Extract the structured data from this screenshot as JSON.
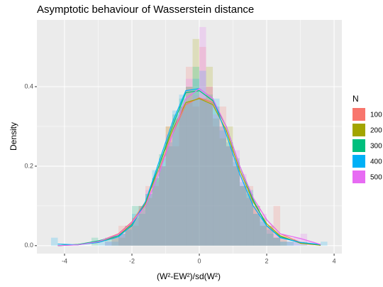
{
  "chart_data": {
    "type": "histogram",
    "title": "Asymptotic behaviour of Wasserstein distance",
    "x_label": "(W²-EW²)/sd(W²)",
    "y_label": "Density",
    "legend_title": "N",
    "xlim": [
      -4.82,
      4.23
    ],
    "ylim": [
      -0.02,
      0.568
    ],
    "xticks": [
      -4,
      -2,
      0,
      2,
      4
    ],
    "yticks": [
      {
        "value": 0,
        "label": "0.0"
      },
      0.2,
      0.4
    ],
    "grid": true,
    "bins": [
      -4.4,
      -4.2,
      -4.0,
      -3.8,
      -3.6,
      -3.4,
      -3.2,
      -3.0,
      -2.8,
      -2.6,
      -2.4,
      -2.2,
      -2.0,
      -1.8,
      -1.6,
      -1.4,
      -1.2,
      -1.0,
      -0.8,
      -0.6,
      -0.4,
      -0.2,
      0.0,
      0.2,
      0.4,
      0.6,
      0.8,
      1.0,
      1.2,
      1.4,
      1.6,
      1.8,
      2.0,
      2.2,
      2.4,
      2.6,
      2.8,
      3.0,
      3.2,
      3.4,
      3.6,
      3.8
    ],
    "density_x": [
      -4.2,
      -3.6,
      -3.0,
      -2.4,
      -2.0,
      -1.6,
      -1.2,
      -0.8,
      -0.4,
      0.0,
      0.4,
      0.8,
      1.2,
      1.6,
      2.0,
      2.4,
      3.0,
      3.6
    ],
    "series": [
      {
        "name": "100",
        "color": "#F8766D",
        "values": [
          0,
          0,
          0,
          0,
          0,
          0,
          0,
          0,
          0,
          0,
          0.05,
          0.05,
          0.05,
          0.1,
          0.15,
          0.15,
          0.2,
          0.3,
          0.25,
          0.35,
          0.45,
          0.35,
          0.5,
          0.4,
          0.3,
          0.35,
          0.25,
          0.2,
          0.15,
          0.15,
          0.1,
          0.05,
          0.05,
          0.1,
          0,
          0,
          0,
          0,
          0,
          0,
          0
        ],
        "density": [
          0.0,
          0.002,
          0.01,
          0.03,
          0.06,
          0.11,
          0.19,
          0.28,
          0.355,
          0.372,
          0.36,
          0.3,
          0.2,
          0.12,
          0.065,
          0.03,
          0.008,
          0.001
        ]
      },
      {
        "name": "200",
        "color": "#A3A500",
        "values": [
          0,
          0,
          0,
          0,
          0,
          0,
          0,
          0,
          0,
          0.02,
          0.02,
          0.05,
          0.07,
          0.1,
          0.12,
          0.17,
          0.2,
          0.3,
          0.32,
          0.35,
          0.4,
          0.52,
          0.37,
          0.45,
          0.32,
          0.27,
          0.3,
          0.2,
          0.15,
          0.12,
          0.1,
          0.05,
          0.05,
          0.02,
          0.02,
          0,
          0,
          0,
          0,
          0,
          0
        ],
        "density": [
          0.0,
          0.003,
          0.008,
          0.025,
          0.055,
          0.105,
          0.2,
          0.29,
          0.36,
          0.37,
          0.355,
          0.29,
          0.19,
          0.11,
          0.055,
          0.025,
          0.006,
          0.001
        ]
      },
      {
        "name": "300",
        "color": "#00BF7D",
        "values": [
          0,
          0,
          0,
          0,
          0,
          0,
          0.02,
          0,
          0.02,
          0.02,
          0.03,
          0.05,
          0.1,
          0.08,
          0.13,
          0.17,
          0.23,
          0.25,
          0.33,
          0.37,
          0.4,
          0.45,
          0.37,
          0.38,
          0.35,
          0.3,
          0.25,
          0.22,
          0.15,
          0.13,
          0.08,
          0.07,
          0.03,
          0.02,
          0.01,
          0.01,
          0,
          0.01,
          0,
          0,
          0
        ],
        "density": [
          0.0,
          0.003,
          0.012,
          0.025,
          0.05,
          0.11,
          0.2,
          0.3,
          0.385,
          0.39,
          0.365,
          0.3,
          0.2,
          0.115,
          0.05,
          0.022,
          0.008,
          0.002
        ]
      },
      {
        "name": "400",
        "color": "#00B0F6",
        "values": [
          0.02,
          0,
          0,
          0,
          0,
          0,
          0,
          0.01,
          0.01,
          0.01,
          0.03,
          0.04,
          0.08,
          0.1,
          0.13,
          0.19,
          0.22,
          0.26,
          0.34,
          0.38,
          0.36,
          0.42,
          0.44,
          0.36,
          0.37,
          0.29,
          0.26,
          0.21,
          0.16,
          0.14,
          0.08,
          0.06,
          0.04,
          0.02,
          0.01,
          0.01,
          0.01,
          0,
          0,
          0,
          0.01
        ],
        "density": [
          0.004,
          0.002,
          0.008,
          0.022,
          0.052,
          0.11,
          0.21,
          0.31,
          0.39,
          0.395,
          0.37,
          0.28,
          0.18,
          0.1,
          0.05,
          0.02,
          0.008,
          0.003
        ]
      },
      {
        "name": "500",
        "color": "#E76BF3",
        "values": [
          0,
          0,
          0,
          0,
          0,
          0,
          0,
          0,
          0.01,
          0.02,
          0.03,
          0.05,
          0.07,
          0.09,
          0.14,
          0.16,
          0.2,
          0.28,
          0.3,
          0.34,
          0.42,
          0.38,
          0.55,
          0.4,
          0.33,
          0.3,
          0.25,
          0.24,
          0.18,
          0.12,
          0.1,
          0.08,
          0.05,
          0.03,
          0.02,
          0.01,
          0.02,
          0.03,
          0.01,
          0,
          0
        ],
        "density": [
          0.0,
          0.002,
          0.01,
          0.028,
          0.058,
          0.1,
          0.18,
          0.28,
          0.37,
          0.395,
          0.37,
          0.3,
          0.2,
          0.12,
          0.065,
          0.03,
          0.018,
          0.003
        ]
      }
    ]
  }
}
